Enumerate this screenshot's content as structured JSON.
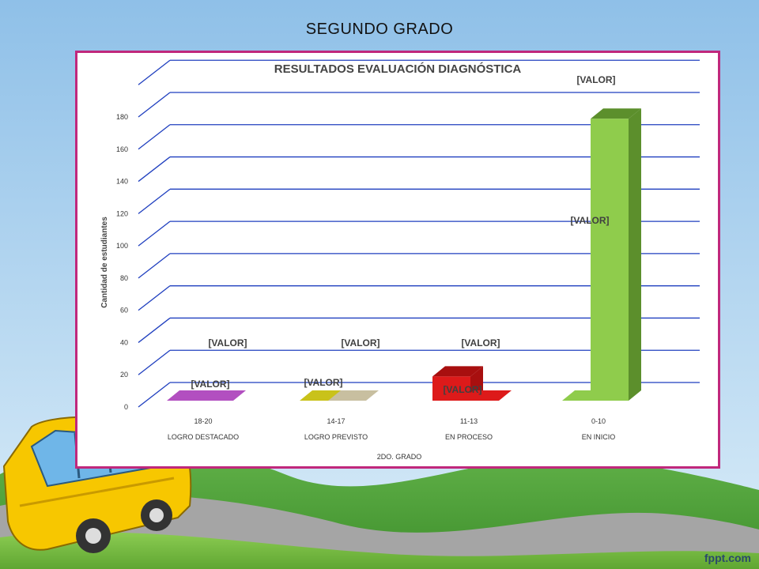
{
  "slide": {
    "title": "SEGUNDO GRADO",
    "watermark": "fppt.com"
  },
  "colors": {
    "frame": "#c0287c",
    "gridline": "#1f3fbf",
    "sky_top": "#9cc9ec",
    "hills": "#7ac043"
  },
  "chart_data": {
    "type": "bar",
    "title": "RESULTADOS EVALUACIÓN DIAGNÓSTICA",
    "ylabel": "Cantidad de estudiantes",
    "xlabel": "2DO. GRADO",
    "ylim": [
      0,
      180
    ],
    "yticks": [
      0,
      20,
      40,
      60,
      80,
      100,
      120,
      140,
      160,
      180
    ],
    "grid": true,
    "categories": [
      {
        "range": "18-20",
        "name": "LOGRO DESTACADO"
      },
      {
        "range": "14-17",
        "name": "LOGRO PREVISTO"
      },
      {
        "range": "11-13",
        "name": "EN PROCESO"
      },
      {
        "range": "0-10",
        "name": "EN INICIO"
      }
    ],
    "series": [
      {
        "values": [
          0,
          0,
          15,
          0
        ]
      },
      {
        "values": [
          0,
          0,
          0,
          175
        ]
      }
    ],
    "data_labels": [
      "[VALOR]",
      "[VALOR]",
      "[VALOR]",
      "[VALOR]",
      "[VALOR]",
      "[VALOR]",
      "[VALOR]",
      "[VALOR]"
    ]
  }
}
